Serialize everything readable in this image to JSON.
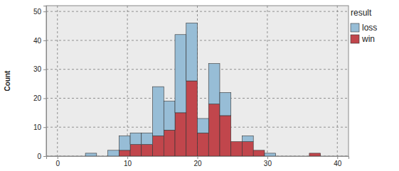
{
  "chart_data": {
    "type": "histogram",
    "y_label": "Count",
    "legend_title": "result",
    "bins": [
      4,
      5.6,
      7.2,
      8.8,
      10.4,
      12,
      13.6,
      15.2,
      16.8,
      18.4,
      20,
      21.6,
      23.2,
      24.8,
      26.4,
      28,
      29.6,
      31.2,
      32.8,
      34.4,
      36,
      37.6
    ],
    "series": [
      {
        "name": "loss",
        "color": "#97bdd6",
        "values": [
          1,
          0,
          2,
          5,
          4,
          4,
          17,
          10,
          27,
          20,
          5,
          14,
          8,
          0,
          2,
          0,
          1,
          0,
          0,
          0,
          0
        ]
      },
      {
        "name": "win",
        "color": "#c1464c",
        "values": [
          0,
          0,
          0,
          2,
          4,
          4,
          7,
          9,
          15,
          26,
          8,
          18,
          14,
          5,
          5,
          2,
          0,
          0,
          0,
          0,
          1
        ]
      }
    ],
    "stacked": true,
    "xlim": [
      -1.6,
      41.6
    ],
    "xticks": [
      0,
      10,
      20,
      30,
      40
    ],
    "ylim": [
      0,
      52
    ],
    "yticks": [
      0,
      10,
      20,
      30,
      40,
      50
    ],
    "grid": true,
    "legend": "right"
  }
}
